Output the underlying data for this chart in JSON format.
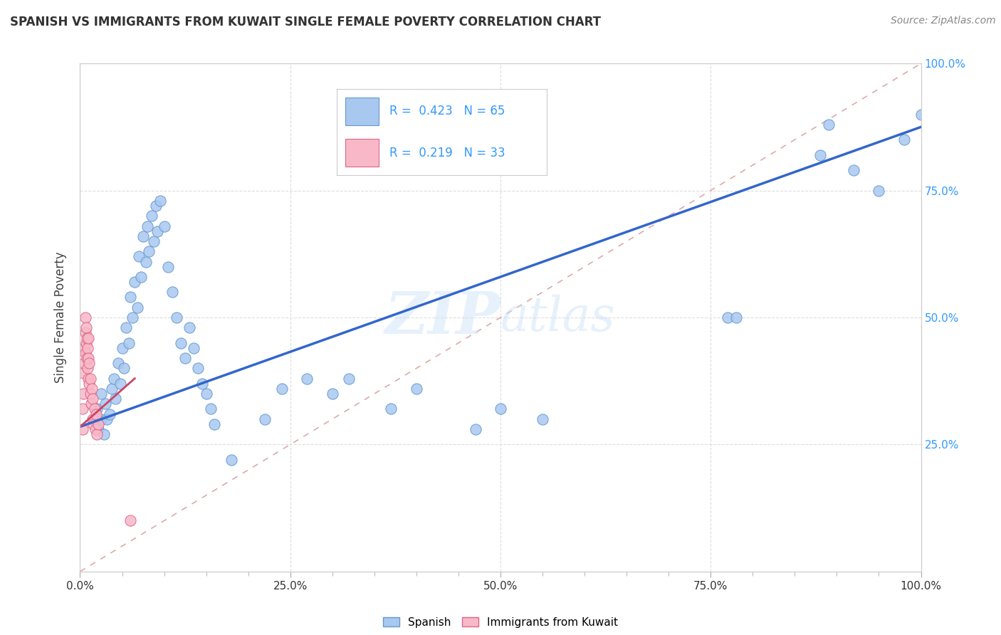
{
  "title": "SPANISH VS IMMIGRANTS FROM KUWAIT SINGLE FEMALE POVERTY CORRELATION CHART",
  "source": "Source: ZipAtlas.com",
  "ylabel": "Single Female Poverty",
  "watermark": "ZIPatlas",
  "legend_R_color": "#3399ff",
  "xlim": [
    0,
    1
  ],
  "ylim": [
    0,
    1
  ],
  "xtick_labels": [
    "0.0%",
    "",
    "",
    "",
    "",
    "25.0%",
    "",
    "",
    "",
    "",
    "50.0%",
    "",
    "",
    "",
    "",
    "75.0%",
    "",
    "",
    "",
    "",
    "100.0%"
  ],
  "xtick_vals": [
    0,
    0.05,
    0.1,
    0.15,
    0.2,
    0.25,
    0.3,
    0.35,
    0.4,
    0.45,
    0.5,
    0.55,
    0.6,
    0.65,
    0.7,
    0.75,
    0.8,
    0.85,
    0.9,
    0.95,
    1.0
  ],
  "ytick_vals_right": [
    0.25,
    0.5,
    0.75,
    1.0
  ],
  "ytick_labels_right": [
    "25.0%",
    "50.0%",
    "75.0%",
    "100.0%"
  ],
  "spanish_color": "#a8c8f0",
  "spanish_edge": "#6699cc",
  "kuwait_color": "#f8b8c8",
  "kuwait_edge": "#dd6688",
  "regression_blue_color": "#3366cc",
  "regression_pink_color": "#cc4466",
  "diagonal_color": "#ddaaaa",
  "grid_color": "#dddddd",
  "spanish_x": [
    0.02,
    0.02,
    0.022,
    0.025,
    0.025,
    0.028,
    0.03,
    0.032,
    0.035,
    0.038,
    0.04,
    0.042,
    0.045,
    0.048,
    0.05,
    0.052,
    0.055,
    0.058,
    0.06,
    0.062,
    0.065,
    0.068,
    0.07,
    0.072,
    0.075,
    0.078,
    0.08,
    0.082,
    0.085,
    0.088,
    0.09,
    0.092,
    0.095,
    0.1,
    0.105,
    0.11,
    0.115,
    0.12,
    0.125,
    0.13,
    0.135,
    0.14,
    0.145,
    0.15,
    0.155,
    0.16,
    0.18,
    0.22,
    0.24,
    0.27,
    0.3,
    0.32,
    0.37,
    0.4,
    0.47,
    0.5,
    0.55,
    0.77,
    0.78,
    0.88,
    0.89,
    0.92,
    0.95,
    0.98,
    1.0
  ],
  "spanish_y": [
    0.32,
    0.29,
    0.28,
    0.35,
    0.3,
    0.27,
    0.33,
    0.3,
    0.31,
    0.36,
    0.38,
    0.34,
    0.41,
    0.37,
    0.44,
    0.4,
    0.48,
    0.45,
    0.54,
    0.5,
    0.57,
    0.52,
    0.62,
    0.58,
    0.66,
    0.61,
    0.68,
    0.63,
    0.7,
    0.65,
    0.72,
    0.67,
    0.73,
    0.68,
    0.6,
    0.55,
    0.5,
    0.45,
    0.42,
    0.48,
    0.44,
    0.4,
    0.37,
    0.35,
    0.32,
    0.29,
    0.22,
    0.3,
    0.36,
    0.38,
    0.35,
    0.38,
    0.32,
    0.36,
    0.28,
    0.32,
    0.3,
    0.5,
    0.5,
    0.82,
    0.88,
    0.79,
    0.75,
    0.85,
    0.9
  ],
  "kuwait_x": [
    0.003,
    0.003,
    0.004,
    0.004,
    0.005,
    0.005,
    0.006,
    0.006,
    0.006,
    0.007,
    0.007,
    0.008,
    0.008,
    0.009,
    0.009,
    0.01,
    0.01,
    0.01,
    0.011,
    0.011,
    0.012,
    0.012,
    0.013,
    0.014,
    0.015,
    0.015,
    0.016,
    0.017,
    0.018,
    0.019,
    0.02,
    0.022,
    0.06
  ],
  "kuwait_y": [
    0.28,
    0.32,
    0.35,
    0.39,
    0.41,
    0.44,
    0.43,
    0.47,
    0.5,
    0.45,
    0.48,
    0.42,
    0.46,
    0.4,
    0.44,
    0.38,
    0.42,
    0.46,
    0.37,
    0.41,
    0.35,
    0.38,
    0.33,
    0.36,
    0.3,
    0.34,
    0.29,
    0.32,
    0.28,
    0.31,
    0.27,
    0.29,
    0.1
  ],
  "blue_line_x": [
    0.0,
    1.0
  ],
  "blue_line_y": [
    0.285,
    0.875
  ],
  "pink_line_x": [
    0.0,
    0.065
  ],
  "pink_line_y": [
    0.285,
    0.38
  ],
  "diag_line_x": [
    0.0,
    1.0
  ],
  "diag_line_y": [
    0.0,
    1.0
  ]
}
